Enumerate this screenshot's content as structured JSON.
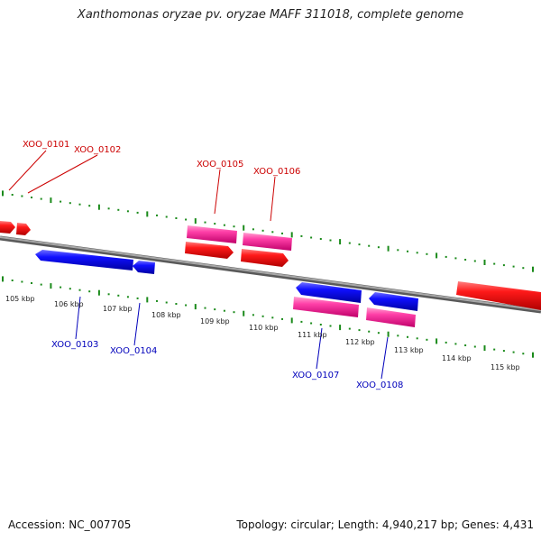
{
  "title": "Xanthomonas oryzae pv. oryzae MAFF 311018, complete genome",
  "footer": {
    "accession": "Accession: NC_007705",
    "stats": "Topology: circular; Length: 4,940,217 bp; Genes: 4,431"
  },
  "scale_labels": [
    "105 kbp",
    "106 kbp",
    "107 kbp",
    "108 kbp",
    "109 kbp",
    "110 kbp",
    "111 kbp",
    "112 kbp",
    "113 kbp",
    "114 kbp",
    "115 kbp"
  ],
  "gene_labels": {
    "forward": [
      "XOO_0101",
      "XOO_0102",
      "XOO_0105",
      "XOO_0106"
    ],
    "reverse": [
      "XOO_0103",
      "XOO_0104",
      "XOO_0107",
      "XOO_0108"
    ]
  },
  "colors": {
    "forward_label": "#cc0000",
    "reverse_label": "#0000bb",
    "cds_forward": "#ff0000",
    "cds_reverse": "#0000ff",
    "gene_feature": "#ff3fa0",
    "backbone": "#888888",
    "ticks": "#1a8a1a"
  }
}
